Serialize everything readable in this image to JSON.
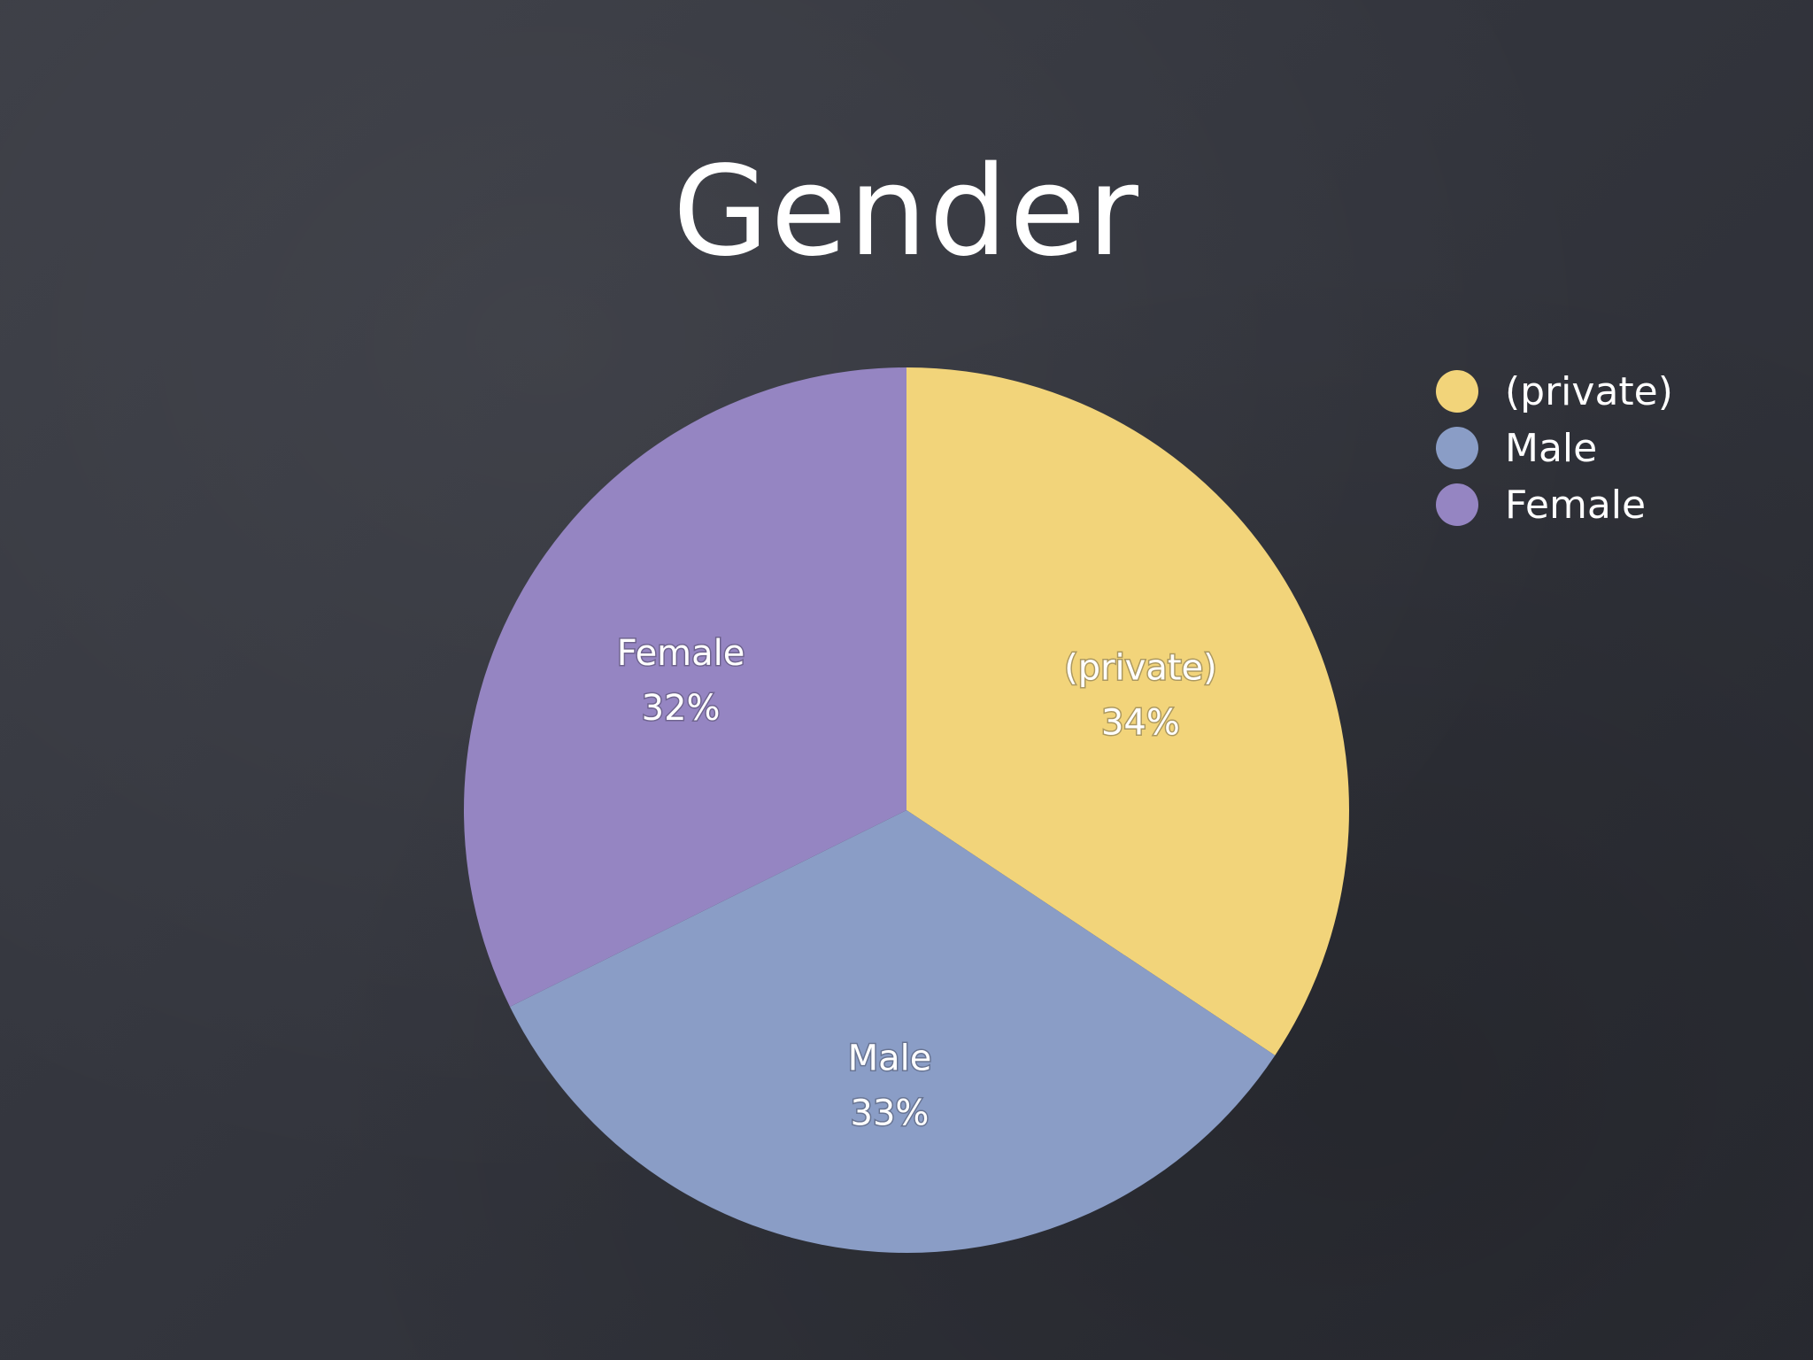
{
  "title": "Gender",
  "chart_data": {
    "type": "pie",
    "title": "Gender",
    "categories": [
      "(private)",
      "Male",
      "Female"
    ],
    "values": [
      34,
      33,
      32
    ],
    "value_labels": [
      "34%",
      "33%",
      "32%"
    ],
    "colors": [
      "#f2d47a",
      "#8a9dc6",
      "#9585c2"
    ],
    "legend": {
      "position": "top-right",
      "entries": [
        "(private)",
        "Male",
        "Female"
      ]
    }
  }
}
